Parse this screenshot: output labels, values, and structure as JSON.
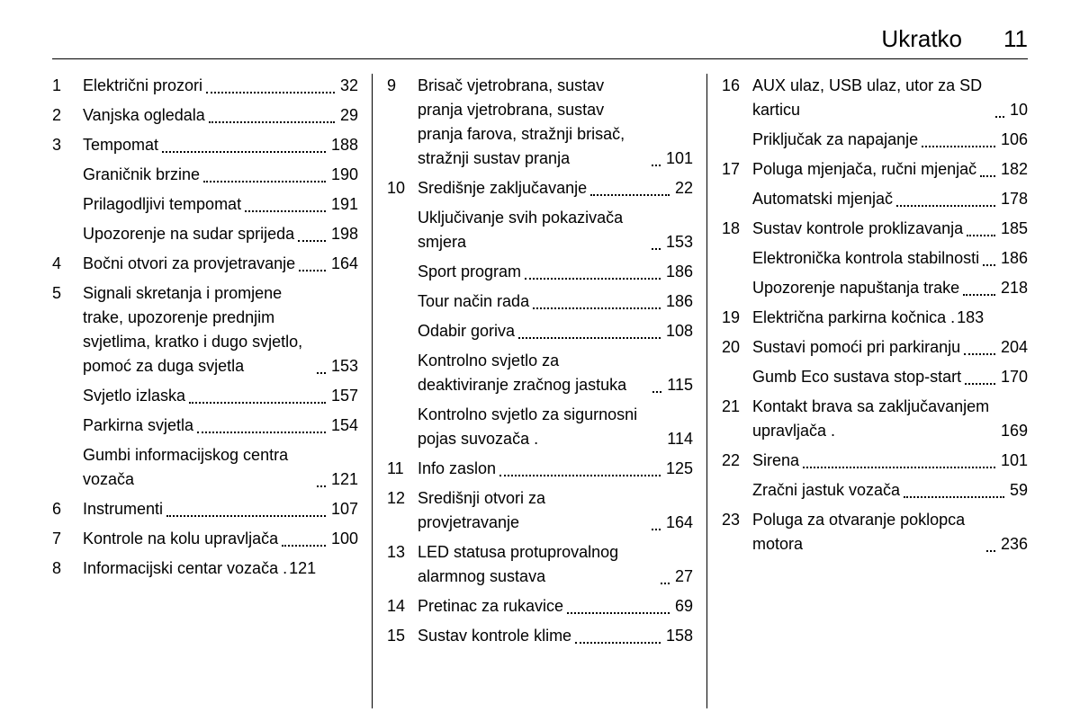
{
  "header": {
    "title": "Ukratko",
    "page": "11"
  },
  "columns": [
    [
      {
        "n": "1",
        "label": "Električni prozori",
        "page": "32"
      },
      {
        "n": "2",
        "label": "Vanjska ogledala",
        "page": "29"
      },
      {
        "n": "3",
        "label": "Tempomat",
        "page": "188"
      },
      {
        "n": "",
        "label": "Graničnik brzine",
        "page": "190"
      },
      {
        "n": "",
        "label": "Prilagodljivi tempomat",
        "page": "191"
      },
      {
        "n": "",
        "label": "Upozorenje na sudar sprijeda",
        "page": "198"
      },
      {
        "n": "4",
        "label": "Bočni otvori za provjetravanje",
        "page": "164"
      },
      {
        "n": "5",
        "label": "Signali skretanja i promjene trake, upozorenje prednjim svjetlima, kratko i dugo svjetlo, pomoć za duga svjetla",
        "page": "153"
      },
      {
        "n": "",
        "label": "Svjetlo izlaska",
        "page": "157"
      },
      {
        "n": "",
        "label": "Parkirna svjetla",
        "page": "154"
      },
      {
        "n": "",
        "label": "Gumbi informacijskog centra vozača",
        "page": "121"
      },
      {
        "n": "6",
        "label": "Instrumenti",
        "page": "107"
      },
      {
        "n": "7",
        "label": "Kontrole na kolu upravljača",
        "page": "100"
      },
      {
        "n": "8",
        "label": "Informacijski centar vozača .",
        "page": "121",
        "nodots": true
      }
    ],
    [
      {
        "n": "9",
        "label": "Brisač vjetrobrana, sustav pranja vjetrobrana, sustav pranja farova, stražnji brisač, stražnji sustav pranja",
        "page": "101"
      },
      {
        "n": "10",
        "label": "Središnje zaključavanje",
        "page": "22"
      },
      {
        "n": "",
        "label": "Uključivanje svih pokazivača smjera",
        "page": "153"
      },
      {
        "n": "",
        "label": "Sport program",
        "page": "186"
      },
      {
        "n": "",
        "label": "Tour način rada",
        "page": "186"
      },
      {
        "n": "",
        "label": "Odabir goriva",
        "page": "108"
      },
      {
        "n": "",
        "label": "Kontrolno svjetlo za deaktiviranje zračnog jastuka",
        "page": "115"
      },
      {
        "n": "",
        "label": "Kontrolno svjetlo za sigurnosni pojas suvozača .",
        "page": "114",
        "nodots": true
      },
      {
        "n": "11",
        "label": "Info zaslon",
        "page": "125"
      },
      {
        "n": "12",
        "label": "Središnji otvori za provjetravanje",
        "page": "164"
      },
      {
        "n": "13",
        "label": "LED statusa protuprovalnog alarmnog sustava",
        "page": "27"
      },
      {
        "n": "14",
        "label": "Pretinac za rukavice",
        "page": "69"
      },
      {
        "n": "15",
        "label": "Sustav kontrole klime",
        "page": "158"
      }
    ],
    [
      {
        "n": "16",
        "label": "AUX ulaz, USB ulaz, utor za SD karticu",
        "page": "10"
      },
      {
        "n": "",
        "label": "Priključak za napajanje",
        "page": "106"
      },
      {
        "n": "17",
        "label": "Poluga mjenjača, ručni mjenjač",
        "page": "182"
      },
      {
        "n": "",
        "label": "Automatski mjenjač",
        "page": "178"
      },
      {
        "n": "18",
        "label": "Sustav kontrole proklizavanja",
        "page": "185"
      },
      {
        "n": "",
        "label": "Elektronička kontrola stabilnosti",
        "page": "186"
      },
      {
        "n": "",
        "label": "Upozorenje napuštanja trake",
        "page": "218"
      },
      {
        "n": "19",
        "label": "Električna parkirna kočnica .",
        "page": "183",
        "nodots": true
      },
      {
        "n": "20",
        "label": "Sustavi pomoći pri parkiranju",
        "page": "204"
      },
      {
        "n": "",
        "label": "Gumb Eco sustava stop-start",
        "page": "170"
      },
      {
        "n": "21",
        "label": "Kontakt brava sa zaključavanjem upravljača .",
        "page": "169",
        "nodots": true
      },
      {
        "n": "22",
        "label": "Sirena",
        "page": "101"
      },
      {
        "n": "",
        "label": "Zračni jastuk vozača",
        "page": "59"
      },
      {
        "n": "23",
        "label": "Poluga za otvaranje poklopca motora",
        "page": "236"
      }
    ]
  ]
}
